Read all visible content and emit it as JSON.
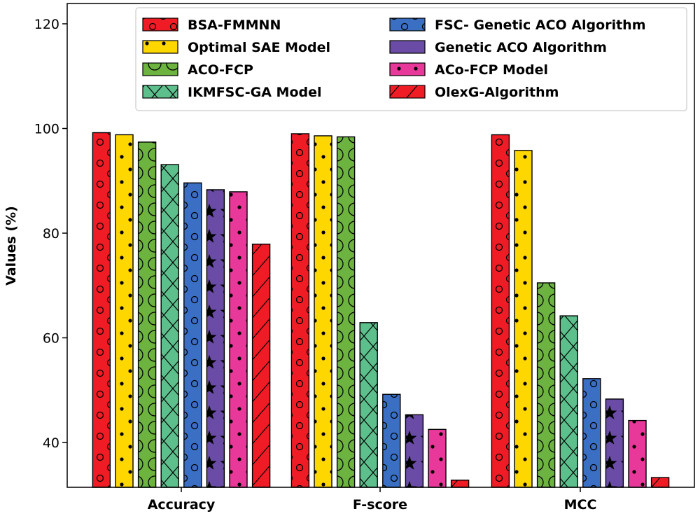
{
  "chart_data": {
    "type": "bar",
    "title": "",
    "xlabel": "",
    "ylabel": "Values (%)",
    "ylim": [
      32,
      124
    ],
    "yticks": [
      40,
      60,
      80,
      100,
      120
    ],
    "grid": false,
    "legend_position": "top-center",
    "legend_columns": 2,
    "categories": [
      "Accuracy",
      "F-score",
      "MCC"
    ],
    "series": [
      {
        "name": "BSA-FMMNN",
        "color": "#ef1c25",
        "pattern": "small-circles",
        "values": [
          99.2,
          99.0,
          98.8
        ]
      },
      {
        "name": "Optimal SAE Model",
        "color": "#ffd700",
        "pattern": "dots",
        "values": [
          98.8,
          98.6,
          95.8
        ]
      },
      {
        "name": "ACO-FCP",
        "color": "#6cb33f",
        "pattern": "large-circles",
        "values": [
          97.4,
          98.4,
          70.5
        ]
      },
      {
        "name": "IKMFSC-GA Model",
        "color": "#5dbf8c",
        "pattern": "cross",
        "values": [
          93.1,
          62.9,
          64.2
        ]
      },
      {
        "name": "FSC- Genetic ACO Algorithm",
        "color": "#3a6fc4",
        "pattern": "small-circles",
        "values": [
          89.6,
          49.2,
          52.2
        ]
      },
      {
        "name": "Genetic ACO Algorithm",
        "color": "#6a4ba5",
        "pattern": "stars",
        "values": [
          88.3,
          45.3,
          48.3
        ]
      },
      {
        "name": "ACo-FCP Model",
        "color": "#e8399a",
        "pattern": "dots",
        "values": [
          87.9,
          42.5,
          44.2
        ]
      },
      {
        "name": "OlexG-Algorithm",
        "color": "#ef1c25",
        "pattern": "diagonal",
        "values": [
          77.9,
          32.8,
          33.3
        ]
      }
    ]
  }
}
